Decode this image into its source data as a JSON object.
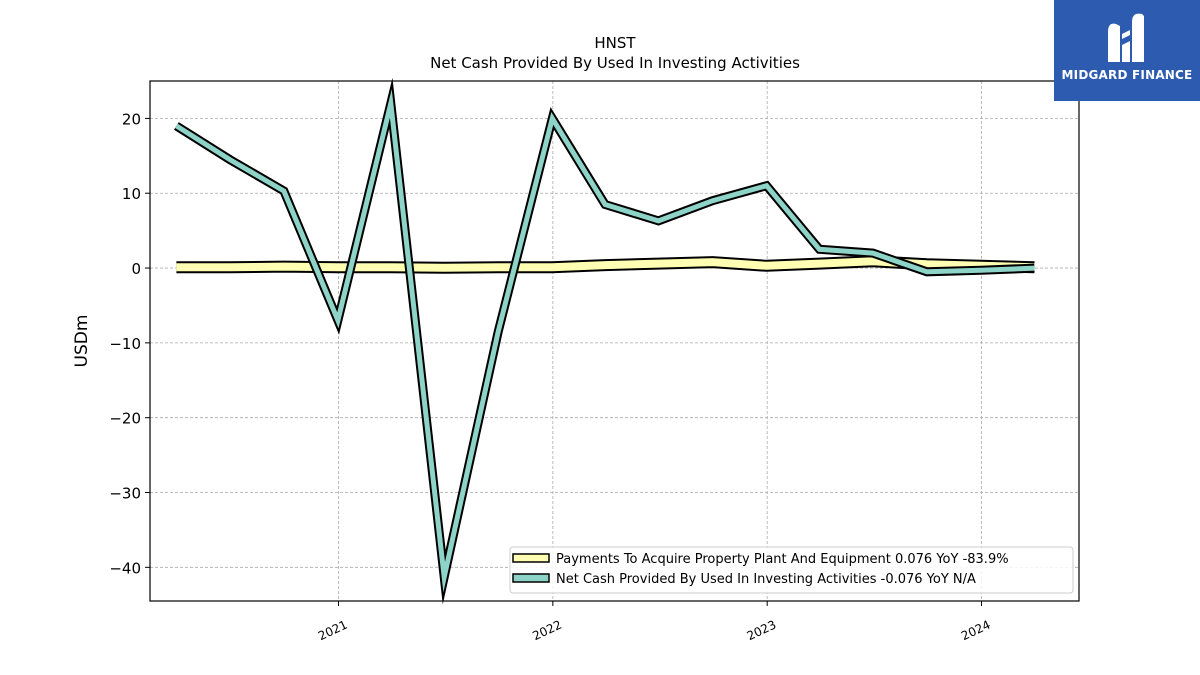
{
  "chart_data": {
    "type": "line",
    "title": "HNST",
    "subtitle": "Net Cash Provided By Used In Investing Activities",
    "ylabel": "USDm",
    "xlabel": "",
    "ylim": [
      -44.5,
      25
    ],
    "xlim": [
      "2020-02-15",
      "2024-06-15"
    ],
    "yticks": [
      20,
      10,
      0,
      -10,
      -20,
      -30,
      -40
    ],
    "ytick_labels": [
      "20",
      "10",
      "0",
      "−10",
      "−20",
      "−30",
      "−40"
    ],
    "xticks": [
      "2021-01-01",
      "2022-01-01",
      "2023-01-01",
      "2024-01-01"
    ],
    "xtick_labels": [
      "2021",
      "2022",
      "2023",
      "2024"
    ],
    "grid": true,
    "legend_position": "lower-right",
    "series": [
      {
        "name": "Payments To Acquire Property Plant And Equipment  0.076 YoY -83.9%",
        "color": "#ffffb3",
        "x": [
          "2020-03-31",
          "2020-06-30",
          "2020-09-30",
          "2020-12-31",
          "2021-03-31",
          "2021-06-30",
          "2021-09-30",
          "2021-12-31",
          "2022-03-31",
          "2022-06-30",
          "2022-09-30",
          "2022-12-31",
          "2023-03-31",
          "2023-06-30",
          "2023-09-30",
          "2023-12-31",
          "2024-03-31"
        ],
        "values": [
          0.1,
          0.1,
          0.2,
          0.1,
          0.1,
          0.05,
          0.1,
          0.1,
          0.4,
          0.6,
          0.8,
          0.3,
          0.6,
          0.9,
          0.5,
          0.3,
          0.1
        ]
      },
      {
        "name": "Net Cash Provided By Used In Investing Activities  -0.076 YoY N/A",
        "color": "#8dd3c7",
        "x": [
          "2020-03-31",
          "2020-06-30",
          "2020-09-30",
          "2020-12-31",
          "2021-03-31",
          "2021-06-30",
          "2021-09-30",
          "2021-12-31",
          "2022-03-31",
          "2022-06-30",
          "2022-09-30",
          "2022-12-31",
          "2023-03-31",
          "2023-06-30",
          "2023-09-30",
          "2023-12-31",
          "2024-03-31"
        ],
        "values": [
          19,
          14.5,
          10.3,
          -7,
          22,
          -41.3,
          -8.5,
          20,
          8.5,
          6.3,
          9,
          11,
          2.5,
          2,
          -0.5,
          -0.3,
          0
        ]
      }
    ]
  },
  "logo": {
    "text": "MIDGARD FINANCE",
    "background": "#2d5bb0"
  }
}
